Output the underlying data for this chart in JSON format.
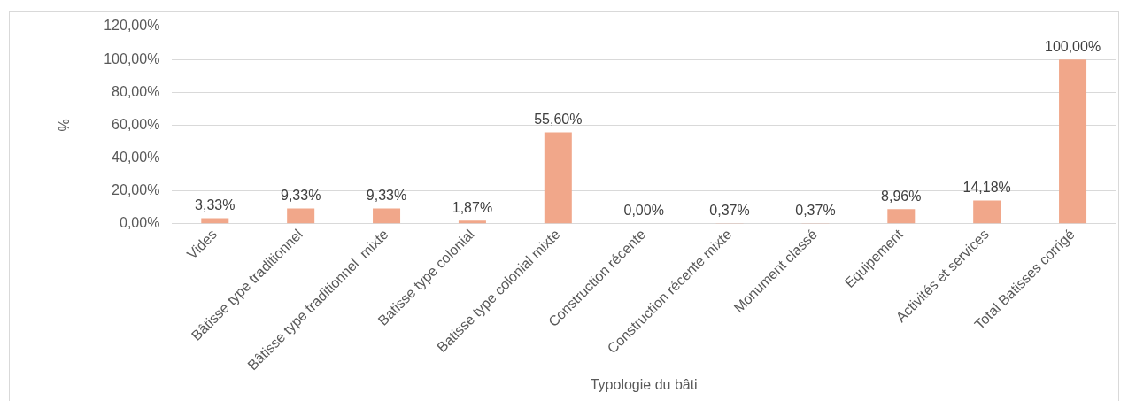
{
  "chart_data": {
    "type": "bar",
    "xlabel": "Typologie du bâti",
    "ylabel": "%",
    "categories": [
      "Vides",
      "Bâtisse type traditionnel",
      "Bâtisse type traditionnel  mixte",
      "Batisse type colonial",
      "Batisse type colonial mixte",
      "Construction récente",
      "Construction récente mixte",
      "Monument classé",
      "Equipement",
      "Activités et services",
      "Total Batisses corrigé"
    ],
    "values": [
      3.33,
      9.33,
      9.33,
      1.87,
      55.6,
      0,
      0.37,
      0.37,
      8.96,
      14.18,
      100
    ],
    "value_labels": [
      "3,33%",
      "9,33%",
      "9,33%",
      "1,87%",
      "55,60%",
      "0,00%",
      "0,37%",
      "0,37%",
      "8,96%",
      "14,18%",
      "100,00%"
    ],
    "color": "#f1a78a",
    "ylim": [
      0,
      120
    ],
    "yticks": [
      {
        "value": 0,
        "label": "0,00%"
      },
      {
        "value": 20,
        "label": "20,00%"
      },
      {
        "value": 40,
        "label": "40,00%"
      },
      {
        "value": 60,
        "label": "60,00%"
      },
      {
        "value": 80,
        "label": "80,00%"
      },
      {
        "value": 100,
        "label": "100,00%"
      },
      {
        "value": 120,
        "label": "120,00%"
      }
    ],
    "grid": "y",
    "legend": false
  }
}
